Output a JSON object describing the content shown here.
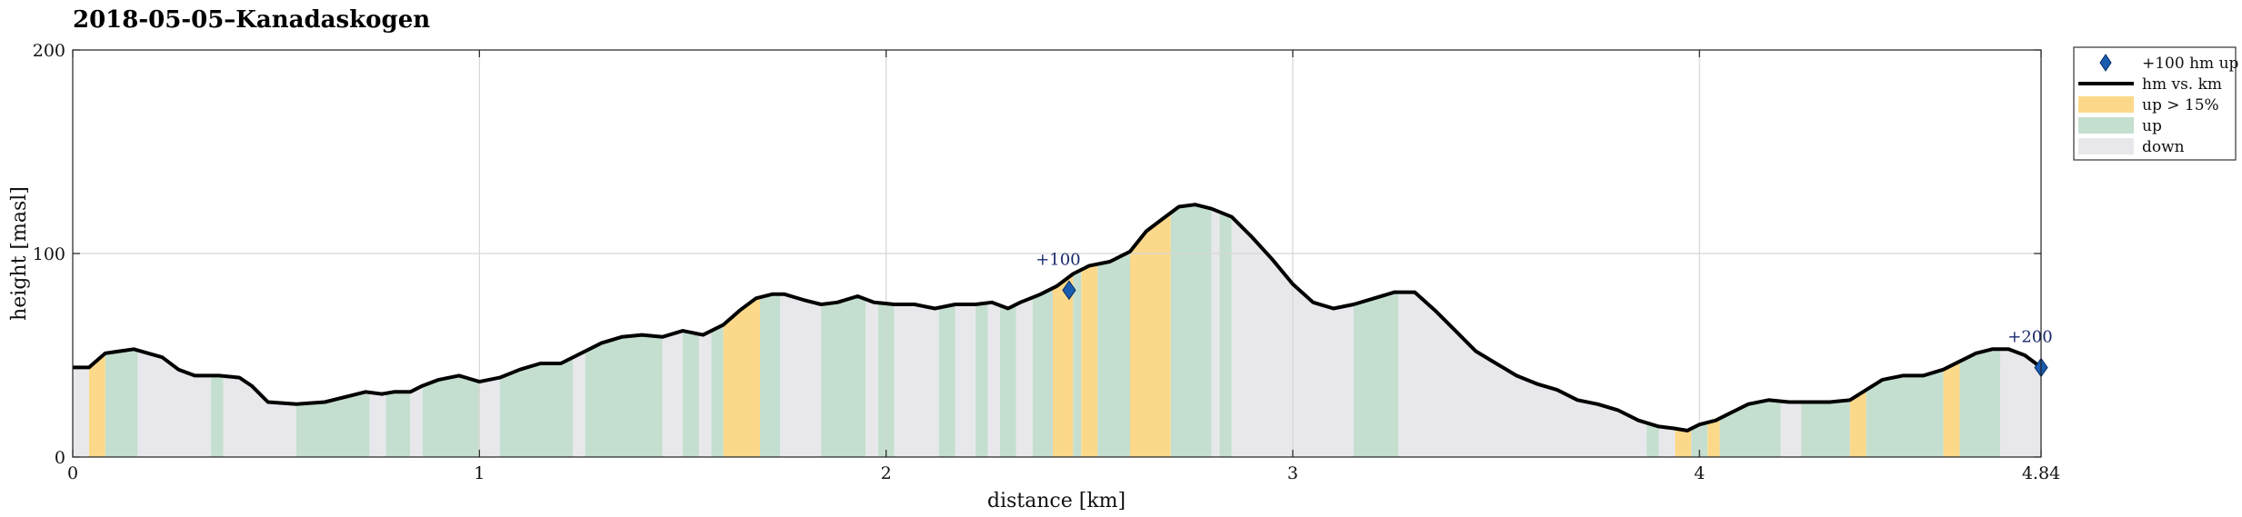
{
  "chart_data": {
    "type": "area",
    "title": "2018-05-05–Kanadaskogen",
    "xlabel": "distance [km]",
    "ylabel": "height [masl]",
    "xlim": [
      0,
      4.84
    ],
    "ylim": [
      0,
      200
    ],
    "xticks": [
      "0",
      "1",
      "2",
      "3",
      "4",
      "4.84"
    ],
    "xtick_values": [
      0,
      1,
      2,
      3,
      4,
      4.84
    ],
    "yticks": [
      "0",
      "100",
      "200"
    ],
    "ytick_values": [
      0,
      100,
      200
    ],
    "grid": true,
    "legend_position": "outside-right",
    "legend": [
      {
        "key": "marker",
        "label": "+100 hm up"
      },
      {
        "key": "line",
        "label": "hm vs. km"
      },
      {
        "key": "steep",
        "label": "up > 15%"
      },
      {
        "key": "up",
        "label": "up"
      },
      {
        "key": "down",
        "label": "down"
      }
    ],
    "colors": {
      "line": "#000000",
      "steep": "#fcd98a",
      "up": "#c4dfcf",
      "down": "#e8e8ec",
      "marker": "#1a5cb0",
      "grid": "#d6d6d6"
    },
    "profile": {
      "x": [
        0,
        0.04,
        0.08,
        0.15,
        0.22,
        0.26,
        0.3,
        0.36,
        0.41,
        0.44,
        0.48,
        0.55,
        0.62,
        0.68,
        0.72,
        0.76,
        0.79,
        0.83,
        0.86,
        0.9,
        0.95,
        1.0,
        1.05,
        1.1,
        1.15,
        1.2,
        1.25,
        1.3,
        1.35,
        1.4,
        1.45,
        1.5,
        1.55,
        1.6,
        1.64,
        1.68,
        1.72,
        1.75,
        1.8,
        1.84,
        1.88,
        1.93,
        1.97,
        2.02,
        2.07,
        2.12,
        2.17,
        2.22,
        2.26,
        2.3,
        2.33,
        2.38,
        2.42,
        2.46,
        2.5,
        2.55,
        2.6,
        2.64,
        2.68,
        2.72,
        2.76,
        2.8,
        2.85,
        2.9,
        2.95,
        3.0,
        3.05,
        3.1,
        3.15,
        3.2,
        3.25,
        3.3,
        3.35,
        3.4,
        3.45,
        3.5,
        3.55,
        3.6,
        3.65,
        3.7,
        3.75,
        3.8,
        3.85,
        3.9,
        3.94,
        3.97,
        4.0,
        4.04,
        4.08,
        4.12,
        4.17,
        4.22,
        4.27,
        4.32,
        4.37,
        4.41,
        4.45,
        4.5,
        4.55,
        4.6,
        4.64,
        4.68,
        4.72,
        4.76,
        4.8,
        4.84
      ],
      "y": [
        44,
        44,
        51,
        53,
        49,
        43,
        40,
        40,
        39,
        35,
        27,
        26,
        27,
        30,
        32,
        31,
        32,
        32,
        35,
        38,
        40,
        37,
        39,
        43,
        46,
        46,
        51,
        56,
        59,
        60,
        59,
        62,
        60,
        65,
        72,
        78,
        80,
        80,
        77,
        75,
        76,
        79,
        76,
        75,
        75,
        73,
        75,
        75,
        76,
        73,
        76,
        80,
        84,
        90,
        94,
        96,
        101,
        111,
        117,
        123,
        124,
        122,
        118,
        108,
        97,
        85,
        76,
        73,
        75,
        78,
        81,
        81,
        72,
        62,
        52,
        46,
        40,
        36,
        33,
        28,
        26,
        23,
        18,
        15,
        14,
        13,
        16,
        18,
        22,
        26,
        28,
        27,
        27,
        27,
        28,
        33,
        38,
        40,
        40,
        43,
        47,
        51,
        53,
        53,
        50,
        44
      ]
    },
    "segments": [
      {
        "kind": "down",
        "x0": 0.0,
        "x1": 0.04
      },
      {
        "kind": "steep",
        "x0": 0.04,
        "x1": 0.08
      },
      {
        "kind": "up",
        "x0": 0.08,
        "x1": 0.16
      },
      {
        "kind": "down",
        "x0": 0.16,
        "x1": 0.34
      },
      {
        "kind": "up",
        "x0": 0.34,
        "x1": 0.37
      },
      {
        "kind": "down",
        "x0": 0.37,
        "x1": 0.55
      },
      {
        "kind": "up",
        "x0": 0.55,
        "x1": 0.73
      },
      {
        "kind": "down",
        "x0": 0.73,
        "x1": 0.77
      },
      {
        "kind": "up",
        "x0": 0.77,
        "x1": 0.83
      },
      {
        "kind": "down",
        "x0": 0.83,
        "x1": 0.86
      },
      {
        "kind": "up",
        "x0": 0.86,
        "x1": 1.0
      },
      {
        "kind": "down",
        "x0": 1.0,
        "x1": 1.05
      },
      {
        "kind": "up",
        "x0": 1.05,
        "x1": 1.23
      },
      {
        "kind": "down",
        "x0": 1.23,
        "x1": 1.26
      },
      {
        "kind": "up",
        "x0": 1.26,
        "x1": 1.45
      },
      {
        "kind": "down",
        "x0": 1.45,
        "x1": 1.5
      },
      {
        "kind": "up",
        "x0": 1.5,
        "x1": 1.54
      },
      {
        "kind": "down",
        "x0": 1.54,
        "x1": 1.57
      },
      {
        "kind": "up",
        "x0": 1.57,
        "x1": 1.6
      },
      {
        "kind": "steep",
        "x0": 1.6,
        "x1": 1.69
      },
      {
        "kind": "up",
        "x0": 1.69,
        "x1": 1.74
      },
      {
        "kind": "down",
        "x0": 1.74,
        "x1": 1.84
      },
      {
        "kind": "up",
        "x0": 1.84,
        "x1": 1.95
      },
      {
        "kind": "down",
        "x0": 1.95,
        "x1": 1.98
      },
      {
        "kind": "up",
        "x0": 1.98,
        "x1": 2.02
      },
      {
        "kind": "down",
        "x0": 2.02,
        "x1": 2.13
      },
      {
        "kind": "up",
        "x0": 2.13,
        "x1": 2.17
      },
      {
        "kind": "down",
        "x0": 2.17,
        "x1": 2.22
      },
      {
        "kind": "up",
        "x0": 2.22,
        "x1": 2.25
      },
      {
        "kind": "down",
        "x0": 2.25,
        "x1": 2.28
      },
      {
        "kind": "up",
        "x0": 2.28,
        "x1": 2.32
      },
      {
        "kind": "down",
        "x0": 2.32,
        "x1": 2.36
      },
      {
        "kind": "up",
        "x0": 2.36,
        "x1": 2.41
      },
      {
        "kind": "steep",
        "x0": 2.41,
        "x1": 2.46
      },
      {
        "kind": "up",
        "x0": 2.46,
        "x1": 2.48
      },
      {
        "kind": "steep",
        "x0": 2.48,
        "x1": 2.52
      },
      {
        "kind": "up",
        "x0": 2.52,
        "x1": 2.6
      },
      {
        "kind": "steep",
        "x0": 2.6,
        "x1": 2.7
      },
      {
        "kind": "up",
        "x0": 2.7,
        "x1": 2.8
      },
      {
        "kind": "down",
        "x0": 2.8,
        "x1": 2.82
      },
      {
        "kind": "up",
        "x0": 2.82,
        "x1": 2.85
      },
      {
        "kind": "down",
        "x0": 2.85,
        "x1": 3.15
      },
      {
        "kind": "up",
        "x0": 3.15,
        "x1": 3.26
      },
      {
        "kind": "down",
        "x0": 3.26,
        "x1": 3.87
      },
      {
        "kind": "up",
        "x0": 3.87,
        "x1": 3.9
      },
      {
        "kind": "down",
        "x0": 3.9,
        "x1": 3.94
      },
      {
        "kind": "steep",
        "x0": 3.94,
        "x1": 3.98
      },
      {
        "kind": "up",
        "x0": 3.98,
        "x1": 4.02
      },
      {
        "kind": "steep",
        "x0": 4.02,
        "x1": 4.05
      },
      {
        "kind": "up",
        "x0": 4.05,
        "x1": 4.2
      },
      {
        "kind": "down",
        "x0": 4.2,
        "x1": 4.25
      },
      {
        "kind": "up",
        "x0": 4.25,
        "x1": 4.37
      },
      {
        "kind": "steep",
        "x0": 4.37,
        "x1": 4.41
      },
      {
        "kind": "up",
        "x0": 4.41,
        "x1": 4.6
      },
      {
        "kind": "steep",
        "x0": 4.6,
        "x1": 4.64
      },
      {
        "kind": "up",
        "x0": 4.64,
        "x1": 4.74
      },
      {
        "kind": "down",
        "x0": 4.74,
        "x1": 4.84
      }
    ],
    "markers": [
      {
        "x": 2.45,
        "y": 82,
        "label": "+100"
      },
      {
        "x": 4.84,
        "y": 44,
        "label": "+200"
      }
    ]
  }
}
